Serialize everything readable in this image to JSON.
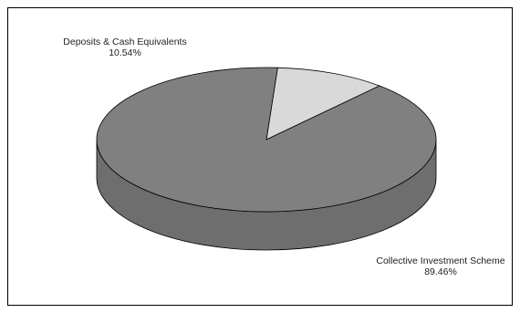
{
  "chart_data": {
    "type": "pie",
    "title": "",
    "style": "3d-pie",
    "slices": [
      {
        "label": "Deposits & Cash Equivalents",
        "value": 10.54,
        "value_label": "10.54%",
        "color": "#d9d9d9"
      },
      {
        "label": "Collective Investment Scheme",
        "value": 89.46,
        "value_label": "89.46%",
        "color": "#808080"
      }
    ]
  },
  "colors": {
    "side_main": "#6e6e6e",
    "side_light": "#bdbdbd",
    "edge": "#000000"
  }
}
